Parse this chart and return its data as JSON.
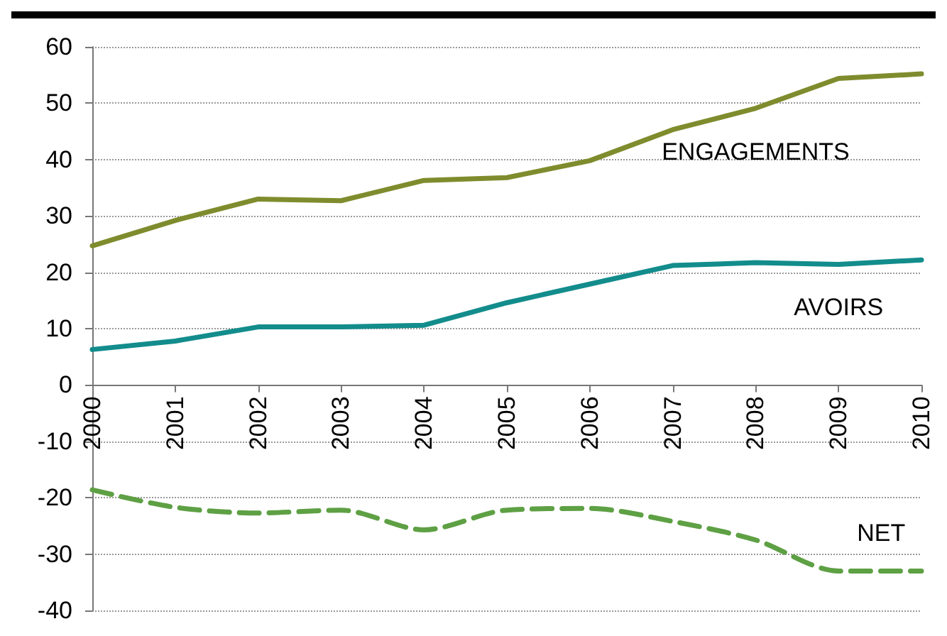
{
  "chart_data": {
    "type": "line",
    "categories": [
      "2000",
      "2001",
      "2002",
      "2003",
      "2004",
      "2005",
      "2006",
      "2007",
      "2008",
      "2009",
      "2010"
    ],
    "series": [
      {
        "name": "ENGAGEMENTS",
        "color": "#7f8c2d",
        "values": [
          24.7,
          29.2,
          33,
          32.7,
          36.3,
          36.8,
          39.8,
          45.3,
          49.1,
          54.4,
          55.2
        ]
      },
      {
        "name": "AVOIRS",
        "color": "#138c8c",
        "values": [
          6.3,
          7.8,
          10.3,
          10.3,
          10.6,
          14.6,
          17.9,
          21.2,
          21.7,
          21.4,
          22.2
        ]
      },
      {
        "name": "NET",
        "color": "#5ea044",
        "line_style": "dashed",
        "values": [
          -18.6,
          -21.7,
          -22.7,
          -22.2,
          -25.7,
          -22.2,
          -21.9,
          -24.2,
          -27.5,
          -33,
          -33
        ]
      }
    ],
    "ylim": [
      -40,
      60
    ],
    "yticks": [
      -40,
      -30,
      -20,
      -10,
      0,
      10,
      20,
      30,
      40,
      50,
      60
    ],
    "grid": "y",
    "legend": false,
    "marker": "none"
  }
}
